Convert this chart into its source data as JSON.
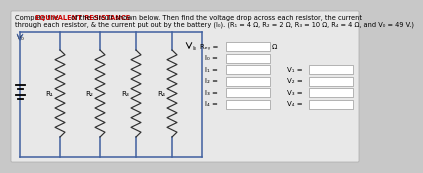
{
  "title_normal1": "Compute the ",
  "title_bold": "EQUIVALENT RESISTANCE",
  "title_normal2": " of the circuit shown below. Then find the voltage drop across each resistor, the current",
  "title_line2": "through each resistor, & the current put out by the battery (I₀). (R₁ = 4 Ω, R₂ = 2 Ω, R₃ = 10 Ω, R₄ = 4 Ω, and V₀ = 49 V.)",
  "bg_color": "#c8c8c8",
  "panel_color": "#e8e8e8",
  "wire_color": "#4060a0",
  "resistor_color": "#303030",
  "text_color": "#000000",
  "bold_color": "#cc0000",
  "box_fill": "#ffffff",
  "box_edge": "#999999",
  "resistor_labels": [
    "R₁",
    "R₂",
    "R₃",
    "R₄"
  ],
  "Vo_label": "V₀",
  "req_label": "Rₑᵧ =",
  "omega": "Ω",
  "Io_label": "I₀ =",
  "I_labels": [
    "I₁ =",
    "I₂ =",
    "I₃ =",
    "I₄ ="
  ],
  "V_labels": [
    "V₁ =",
    "V₂ =",
    "V₃ =",
    "V₄ ="
  ],
  "font_size_title": 4.8,
  "font_size_small": 5.0,
  "font_size_circuit": 5.2
}
